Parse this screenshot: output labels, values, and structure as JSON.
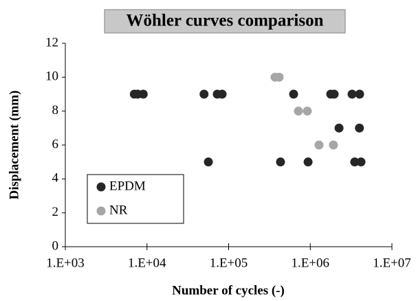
{
  "chart_data": {
    "type": "scatter",
    "title": "Wöhler curves comparison",
    "x_label": "Number of cycles (-)",
    "y_label": "Displacement (mm)",
    "x_scale": "log",
    "xlim": [
      1000,
      10000000
    ],
    "xticks": [
      {
        "value": 1000,
        "label": "1.E+03"
      },
      {
        "value": 10000,
        "label": "1.E+04"
      },
      {
        "value": 100000,
        "label": "1.E+05"
      },
      {
        "value": 1000000,
        "label": "1.E+06"
      },
      {
        "value": 10000000,
        "label": "1.E+07"
      }
    ],
    "ylim": [
      0,
      12
    ],
    "yticks": [
      0,
      2,
      4,
      6,
      8,
      10,
      12
    ],
    "legend_position": "lower left",
    "series": [
      {
        "name": "EPDM",
        "color": "#262626",
        "x": [
          7000,
          7700,
          9000,
          50000,
          72600,
          83200,
          625000,
          1780000,
          1960000,
          3250000,
          4020000,
          56500,
          432000,
          940000,
          3500000,
          4180000,
          2250000,
          4000000
        ],
        "values": [
          9,
          9,
          9,
          9,
          9,
          9,
          9,
          9,
          9,
          9,
          9,
          5,
          5,
          5,
          5,
          5,
          7,
          7
        ]
      },
      {
        "name": "NR",
        "color": "#a6a6a6",
        "x": [
          370000,
          416000,
          716000,
          920000,
          1280000,
          1920000
        ],
        "values": [
          10,
          10,
          8,
          8,
          6,
          6
        ]
      }
    ]
  }
}
